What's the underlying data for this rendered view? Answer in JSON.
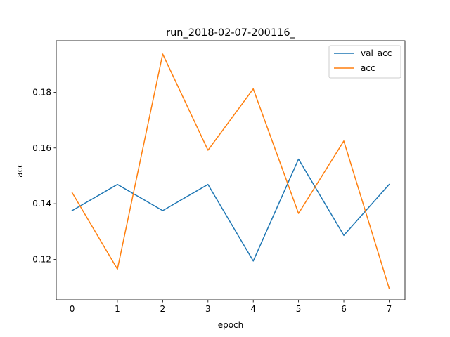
{
  "chart_data": {
    "type": "line",
    "title": "run_2018-02-07-200116_",
    "xlabel": "epoch",
    "ylabel": "acc",
    "x": [
      0,
      1,
      2,
      3,
      4,
      5,
      6,
      7
    ],
    "xlim": [
      -0.35,
      7.35
    ],
    "ylim": [
      0.1055,
      0.1985
    ],
    "xticks": [
      0,
      1,
      2,
      3,
      4,
      5,
      6,
      7
    ],
    "yticks": [
      0.12,
      0.14,
      0.16,
      0.18
    ],
    "ytick_labels": [
      "0.12",
      "0.14",
      "0.16",
      "0.18"
    ],
    "grid": false,
    "legend_position": "top-right",
    "series": [
      {
        "name": "val_acc",
        "color": "#1f77b4",
        "values": [
          0.1375,
          0.1469,
          0.1375,
          0.1469,
          0.1194,
          0.156,
          0.1286,
          0.1469
        ]
      },
      {
        "name": "acc",
        "color": "#ff7f0e",
        "values": [
          0.144,
          0.1165,
          0.1937,
          0.1592,
          0.1812,
          0.1365,
          0.1625,
          0.1096
        ]
      }
    ]
  }
}
